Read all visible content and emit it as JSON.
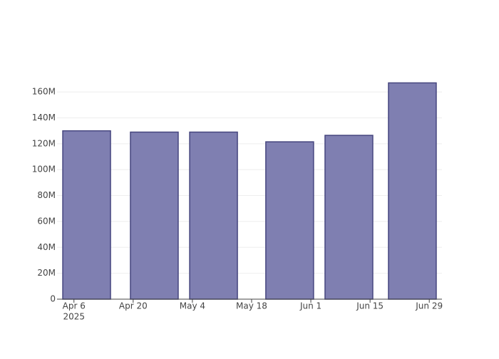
{
  "chart_data": {
    "type": "bar",
    "x": [
      "2025-04-09",
      "2025-04-25",
      "2025-05-09",
      "2025-05-27",
      "2025-06-10",
      "2025-06-25"
    ],
    "values": [
      130000000,
      129000000,
      129000000,
      121500000,
      126500000,
      167000000
    ],
    "color": "#7f7fb1",
    "edge_color": "#46467f",
    "xlim": [
      "2025-04-02",
      "2025-07-02"
    ],
    "xticks": [
      {
        "value": "2025-04-06",
        "label": "Apr 6"
      },
      {
        "value": "2025-04-20",
        "label": "Apr 20"
      },
      {
        "value": "2025-05-04",
        "label": "May 4"
      },
      {
        "value": "2025-05-18",
        "label": "May 18"
      },
      {
        "value": "2025-06-01",
        "label": "Jun 1"
      },
      {
        "value": "2025-06-15",
        "label": "Jun 15"
      },
      {
        "value": "2025-06-29",
        "label": "Jun 29"
      }
    ],
    "x_year_label": "2025",
    "ylim": [
      0,
      176000000
    ],
    "yticks": [
      {
        "value": 0,
        "label": "0"
      },
      {
        "value": 20000000,
        "label": "20M"
      },
      {
        "value": 40000000,
        "label": "40M"
      },
      {
        "value": 60000000,
        "label": "60M"
      },
      {
        "value": 80000000,
        "label": "80M"
      },
      {
        "value": 100000000,
        "label": "100M"
      },
      {
        "value": 120000000,
        "label": "120M"
      },
      {
        "value": 140000000,
        "label": "140M"
      },
      {
        "value": 160000000,
        "label": "160M"
      }
    ],
    "grid": true
  }
}
